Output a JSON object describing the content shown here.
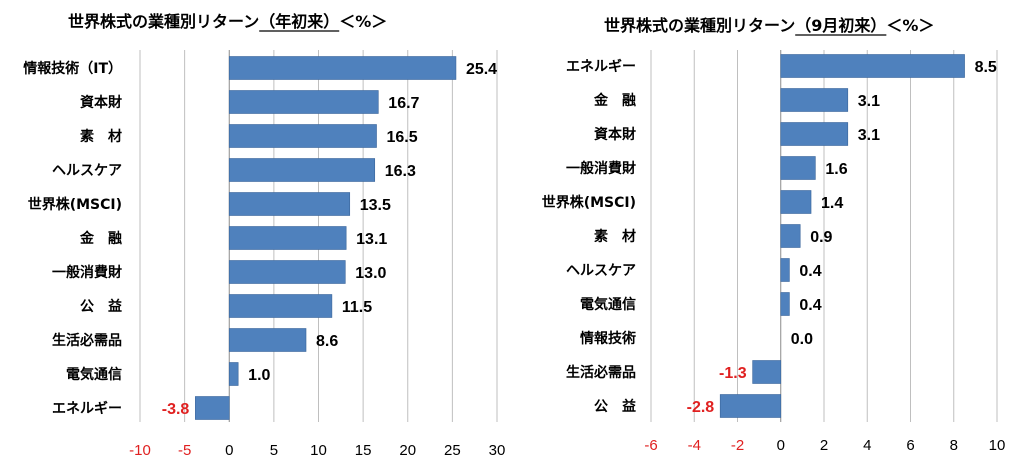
{
  "colors": {
    "bar": "#4f81bd",
    "negative_text": "#e02020",
    "positive_text": "#000000",
    "grid": "#bfbfbf"
  },
  "chart_data": [
    {
      "type": "bar",
      "orientation": "horizontal",
      "title": "世界株式の業種別リターン（年初来）＜%＞",
      "title_main": "世界株式の業種別リターン",
      "title_period": "（年初来）",
      "title_unit": "＜%＞",
      "categories": [
        "情報技術（IT）",
        "資本財",
        "素　材",
        "ヘルスケア",
        "世界株(MSCI)",
        "金　融",
        "一般消費財",
        "公　益",
        "生活必需品",
        "電気通信",
        "エネルギー"
      ],
      "values": [
        25.4,
        16.7,
        16.5,
        16.3,
        13.5,
        13.1,
        13.0,
        11.5,
        8.6,
        1.0,
        -3.8
      ],
      "value_labels": [
        "25.4",
        "16.7",
        "16.5",
        "16.3",
        "13.5",
        "13.1",
        "13.0",
        "11.5",
        "8.6",
        "1.0",
        "-3.8"
      ],
      "xlim": [
        -10,
        30
      ],
      "xticks": [
        -10,
        -5,
        0,
        5,
        10,
        15,
        20,
        25,
        30
      ],
      "xtick_labels": [
        "-10",
        "-5",
        "0",
        "5",
        "10",
        "15",
        "20",
        "25",
        "30"
      ],
      "grid": true
    },
    {
      "type": "bar",
      "orientation": "horizontal",
      "title": "世界株式の業種別リターン（9月初来）＜%＞",
      "title_main": "世界株式の業種別リターン",
      "title_period": "（9月初来）",
      "title_unit": "＜%＞",
      "categories": [
        "エネルギー",
        "金　融",
        "資本財",
        "一般消費財",
        "世界株(MSCI)",
        "素　材",
        "ヘルスケア",
        "電気通信",
        "情報技術",
        "生活必需品",
        "公　益"
      ],
      "values": [
        8.5,
        3.1,
        3.1,
        1.6,
        1.4,
        0.9,
        0.4,
        0.4,
        0.0,
        -1.3,
        -2.8
      ],
      "value_labels": [
        "8.5",
        "3.1",
        "3.1",
        "1.6",
        "1.4",
        "0.9",
        "0.4",
        "0.4",
        "0.0",
        "-1.3",
        "-2.8"
      ],
      "xlim": [
        -6,
        10
      ],
      "xticks": [
        -6,
        -4,
        -2,
        0,
        2,
        4,
        6,
        8,
        10
      ],
      "xtick_labels": [
        "-6",
        "-4",
        "-2",
        "0",
        "2",
        "4",
        "6",
        "8",
        "10"
      ],
      "grid": true
    }
  ]
}
